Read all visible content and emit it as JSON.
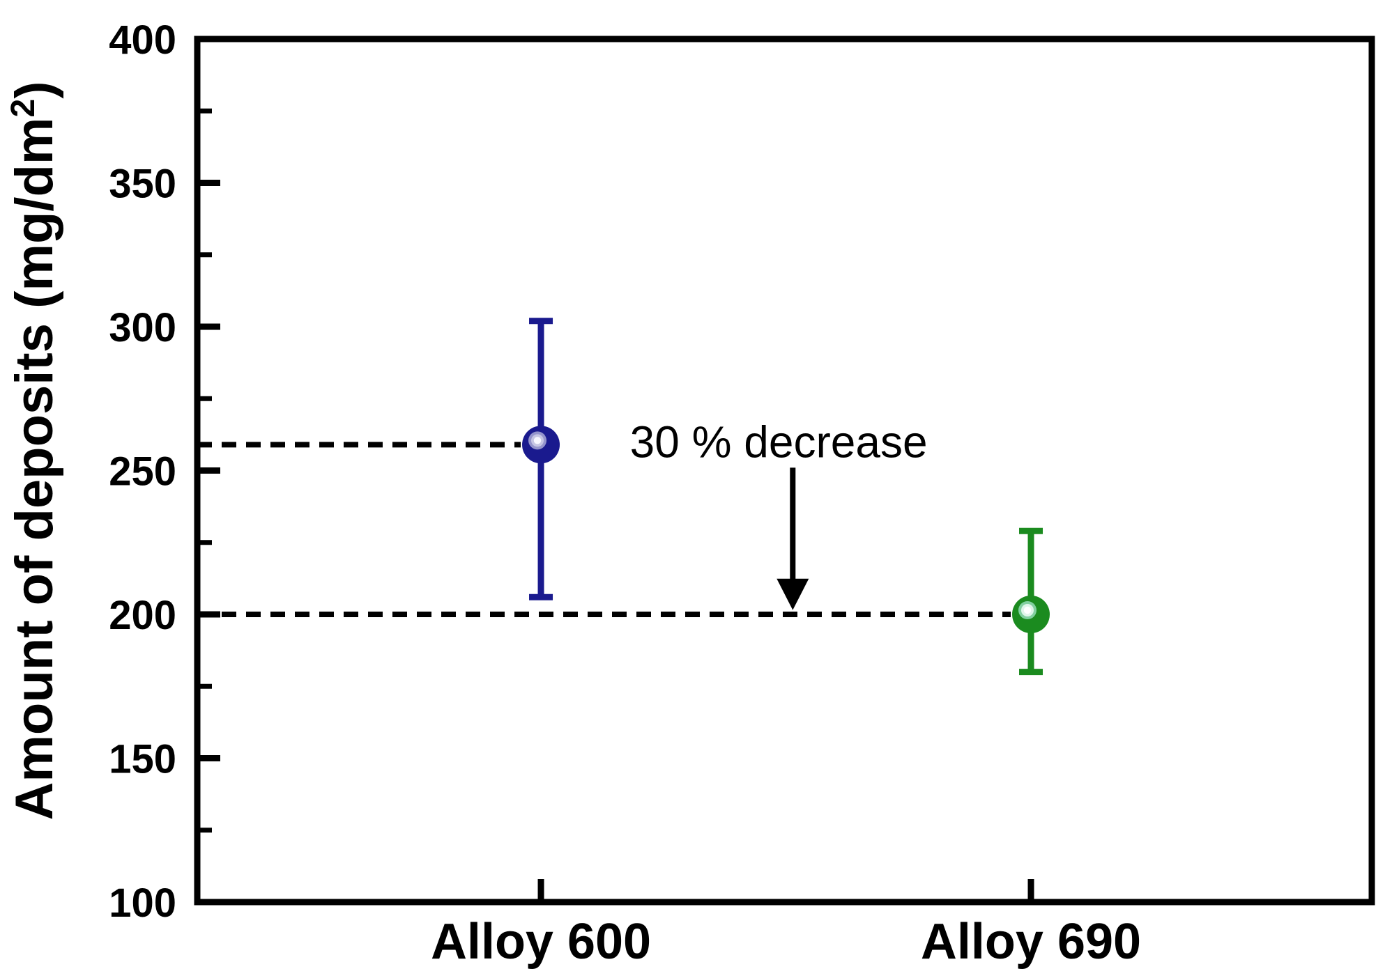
{
  "chart_data": {
    "type": "scatter",
    "title": "",
    "xlabel": "",
    "ylabel": "Amount of deposits (mg/dm²)",
    "ylabel_parts": {
      "main": "Amount of deposits (mg/dm",
      "sup": "2",
      "close": ")"
    },
    "ylim": [
      100,
      400
    ],
    "yticks": [
      {
        "v": 400,
        "label": "400"
      },
      {
        "v": 350,
        "label": "350"
      },
      {
        "v": 300,
        "label": "300"
      },
      {
        "v": 250,
        "label": "250"
      },
      {
        "v": 200,
        "label": "200"
      },
      {
        "v": 150,
        "label": "150"
      },
      {
        "v": 100,
        "label": "100"
      }
    ],
    "yticks_minor": [
      375,
      325,
      275,
      225,
      175,
      125
    ],
    "grid": false,
    "legend": false,
    "categories": [
      {
        "label": "Alloy 600",
        "x_frac": 0.2926
      },
      {
        "label": "Alloy 690",
        "x_frac": 0.7098
      }
    ],
    "series": [
      {
        "name": "Alloy 600",
        "x_frac": 0.2926,
        "y": 259,
        "y_upper": 302,
        "y_lower": 206,
        "marker": "sphere",
        "color": "#1a1a8e",
        "highlight_rings": [
          "#9494cc",
          "#c6c6e4",
          "#f7f7ff"
        ],
        "dashed_guide_to_axis": true
      },
      {
        "name": "Alloy 690",
        "x_frac": 0.7098,
        "y": 200,
        "y_upper": 229,
        "y_lower": 180,
        "marker": "sphere",
        "color": "#1b8b1f",
        "highlight_rings": [
          "#82d0a0",
          "#e0f6ea",
          "#ffffff"
        ],
        "dashed_guide_to_axis": true
      }
    ],
    "annotation": {
      "text": "30 % decrease",
      "x_frac": 0.495,
      "y_value": 254.6,
      "arrow": {
        "x_frac": 0.507,
        "from_value": 251,
        "to_value": 201.5
      }
    },
    "colors": {
      "axis": "#000000",
      "text": "#000000",
      "background": "#ffffff"
    }
  }
}
